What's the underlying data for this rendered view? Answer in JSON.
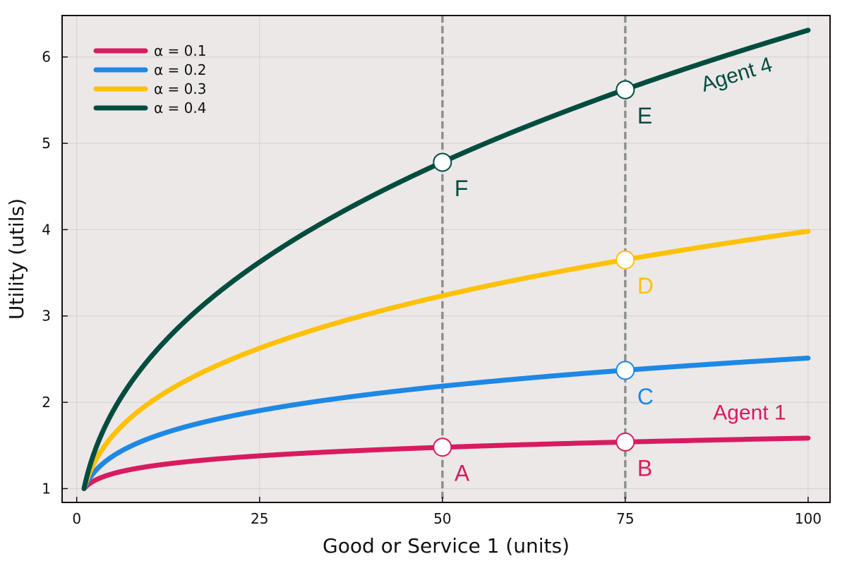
{
  "chart_data": {
    "type": "line",
    "title": "",
    "xlabel": "Good or Service 1 (units)",
    "ylabel": "Utility (utils)",
    "xlim": [
      -2,
      103
    ],
    "ylim": [
      0.84,
      6.48
    ],
    "xticks": [
      0,
      25,
      50,
      75,
      100
    ],
    "yticks": [
      1,
      2,
      3,
      4,
      5,
      6
    ],
    "grid": true,
    "legend_position": "top-left",
    "background": "#ece8e8",
    "series": [
      {
        "name": "α = 0.1",
        "alpha": 0.1,
        "color": "#d81b60"
      },
      {
        "name": "α = 0.2",
        "alpha": 0.2,
        "color": "#1e88e5"
      },
      {
        "name": "α = 0.3",
        "alpha": 0.3,
        "color": "#ffc107"
      },
      {
        "name": "α = 0.4",
        "alpha": 0.4,
        "color": "#004d40"
      }
    ],
    "x_domain": [
      1,
      100
    ],
    "vlines": [
      50,
      75
    ],
    "points": [
      {
        "label": "A",
        "x": 50,
        "y": 1.48,
        "color": "#d81b60"
      },
      {
        "label": "B",
        "x": 75,
        "y": 1.54,
        "color": "#d81b60"
      },
      {
        "label": "C",
        "x": 75,
        "y": 2.37,
        "color": "#1e88e5"
      },
      {
        "label": "D",
        "x": 75,
        "y": 3.65,
        "color": "#ffc107"
      },
      {
        "label": "E",
        "x": 75,
        "y": 5.62,
        "color": "#004d40"
      },
      {
        "label": "F",
        "x": 50,
        "y": 4.78,
        "color": "#004d40"
      }
    ],
    "annotations": [
      {
        "text": "Agent 1",
        "x": 92,
        "y": 1.8,
        "rotation": 0,
        "color": "#d81b60"
      },
      {
        "text": "Agent 4",
        "x": 90.5,
        "y": 5.72,
        "rotation": -17,
        "color": "#004d40"
      }
    ]
  }
}
